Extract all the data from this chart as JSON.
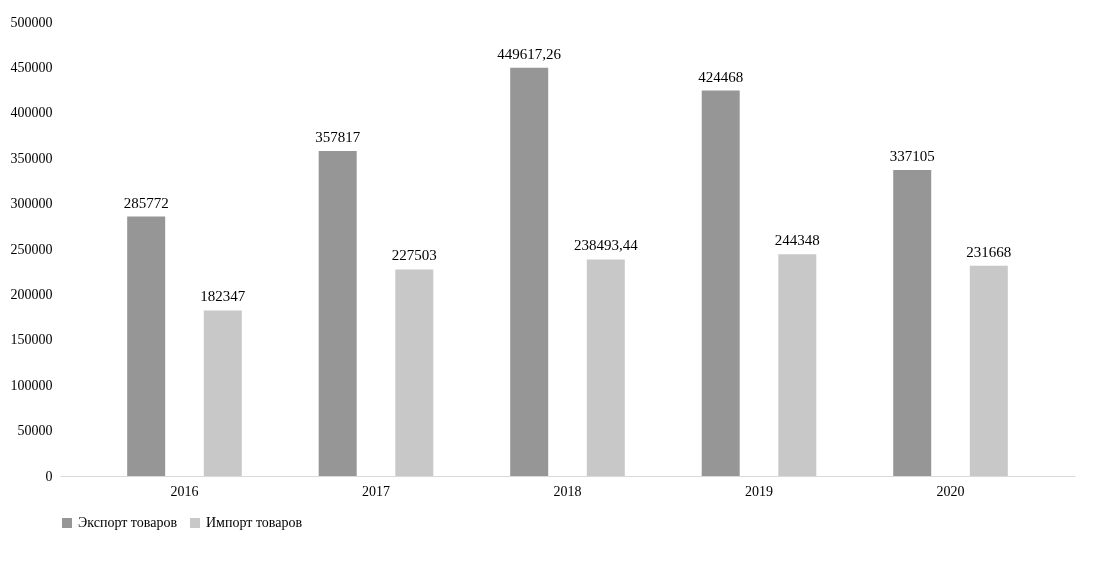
{
  "chart_data": {
    "type": "bar",
    "categories": [
      "2016",
      "2017",
      "2018",
      "2019",
      "2020"
    ],
    "series": [
      {
        "name": "Экспорт товаров",
        "color": "#969696",
        "values": [
          285772,
          357817,
          449617.26,
          424468,
          337105
        ],
        "value_labels": [
          "285772",
          "357817",
          "449617,26",
          "424468",
          "337105"
        ]
      },
      {
        "name": "Импорт товаров",
        "color": "#c8c8c8",
        "values": [
          182347,
          227503,
          238493.44,
          244348,
          231668
        ],
        "value_labels": [
          "182347",
          "227503",
          "238493,44",
          "244348",
          "231668"
        ]
      }
    ],
    "ylim": [
      0,
      500000
    ],
    "yticks": [
      0,
      50000,
      100000,
      150000,
      200000,
      250000,
      300000,
      350000,
      400000,
      450000,
      500000
    ],
    "legend": "bottom"
  }
}
